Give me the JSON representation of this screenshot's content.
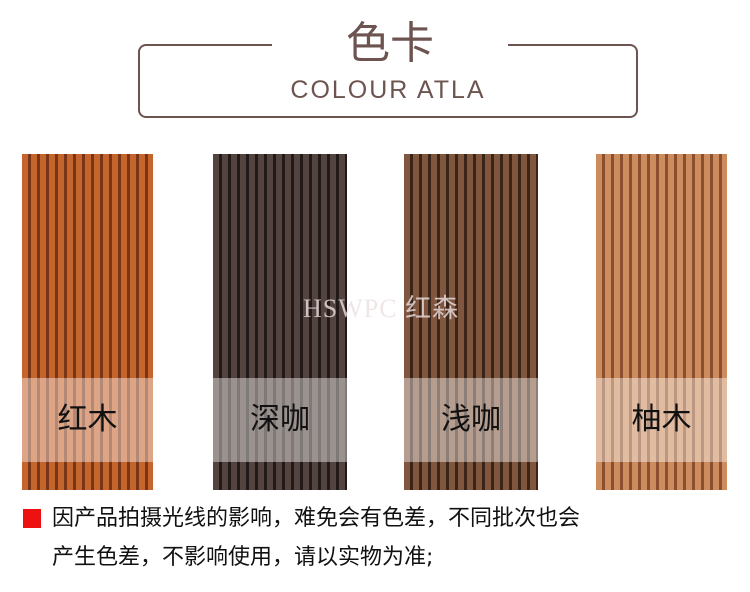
{
  "header": {
    "title": "色卡",
    "subtitle": "COLOUR ATLA"
  },
  "swatches": [
    {
      "label": "红木",
      "color": "#c4652e",
      "line": "#7a3516"
    },
    {
      "label": "深咖",
      "color": "#544440",
      "line": "#221a18"
    },
    {
      "label": "浅咖",
      "color": "#80563f",
      "line": "#3b2418"
    },
    {
      "label": "柚木",
      "color": "#cc8c5e",
      "line": "#8a4f2c"
    }
  ],
  "watermark": "HSWPC 红森",
  "notice": {
    "bullet_color": "#ee1111",
    "line1": "因产品拍摄光线的影响，难免会有色差，不同批次也会",
    "line2": "产生色差，不影响使用，请以实物为准;"
  }
}
